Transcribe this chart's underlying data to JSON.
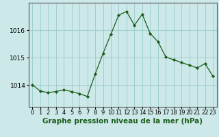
{
  "hours": [
    0,
    1,
    2,
    3,
    4,
    5,
    6,
    7,
    8,
    9,
    10,
    11,
    12,
    13,
    14,
    15,
    16,
    17,
    18,
    19,
    20,
    21,
    22,
    23
  ],
  "pressure": [
    1014.0,
    1013.78,
    1013.72,
    1013.76,
    1013.82,
    1013.76,
    1013.68,
    1013.58,
    1014.4,
    1015.15,
    1015.85,
    1016.55,
    1016.68,
    1016.18,
    1016.58,
    1015.88,
    1015.58,
    1015.02,
    1014.92,
    1014.82,
    1014.72,
    1014.62,
    1014.78,
    1014.32
  ],
  "line_color": "#1a5c1a",
  "marker_color": "#1a5c1a",
  "bg_color": "#cce8e8",
  "grid_color": "#99cccc",
  "ylabel_ticks": [
    1014,
    1015,
    1016
  ],
  "xlabel_label": "Graphe pression niveau de la mer (hPa)",
  "xlabel_fontsize": 7.5,
  "tick_fontsize": 6.5,
  "ylim": [
    1013.2,
    1017.0
  ],
  "xlim": [
    -0.5,
    23.5
  ]
}
